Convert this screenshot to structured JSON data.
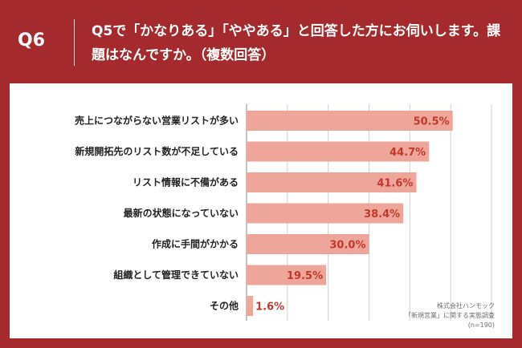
{
  "header": {
    "question_no": "Q6",
    "question_text": "Q5で「かなりある」「ややある」と回答した方にお伺いします。課題はなんですか。（複数回答）"
  },
  "colors": {
    "background": "#a52a2e",
    "bar": "#eea59a",
    "value_label": "#c0392b",
    "grid": "#d0d0d0"
  },
  "chart_data": {
    "type": "bar",
    "orientation": "horizontal",
    "categories": [
      "売上につながらない営業リストが多い",
      "新規開拓先のリスト数が不足している",
      "リスト情報に不備がある",
      "最新の状態になっていない",
      "作成に手間がかかる",
      "組織として管理できていない",
      "その他"
    ],
    "values": [
      50.5,
      44.7,
      41.6,
      38.4,
      30.0,
      19.5,
      1.6
    ],
    "value_labels": [
      "50.5%",
      "44.7%",
      "41.6%",
      "38.4%",
      "30.0%",
      "19.5%",
      "1.6%"
    ],
    "xlim": [
      0,
      60
    ],
    "grid": true
  },
  "footnote": {
    "line1": "株式会社ハンモック",
    "line2": "「新規営業」に関する実態調査",
    "line3": "(n=190)"
  }
}
